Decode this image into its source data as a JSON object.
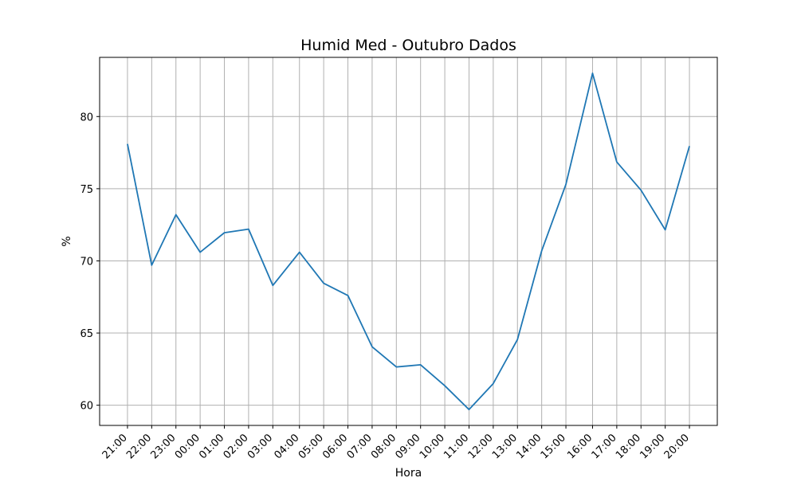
{
  "chart_data": {
    "type": "line",
    "title": "Humid Med - Outubro Dados",
    "xlabel": "Hora",
    "ylabel": "%",
    "tick_labels": [
      "21:00",
      "22:00",
      "23:00",
      "00:00",
      "01:00",
      "02:00",
      "03:00",
      "04:00",
      "05:00",
      "06:00",
      "07:00",
      "08:00",
      "09:00",
      "10:00",
      "11:00",
      "12:00",
      "13:00",
      "14:00",
      "15:00",
      "16:00",
      "17:00",
      "18:00",
      "19:00",
      "20:00"
    ],
    "x": [
      0.0,
      1.0,
      2.0,
      3.0,
      4.0,
      5.0,
      6.0,
      7.1,
      8.1,
      9.1,
      10.1,
      11.1,
      12.1,
      13.1,
      14.1,
      15.1,
      16.1,
      17.1,
      18.1,
      19.2,
      20.2,
      21.2,
      22.2,
      23.2
    ],
    "y": [
      78.1,
      69.7,
      73.2,
      70.6,
      71.95,
      72.2,
      68.3,
      70.6,
      68.45,
      67.6,
      64.05,
      62.65,
      62.8,
      61.35,
      59.7,
      61.5,
      64.55,
      70.7,
      75.3,
      83.0,
      76.85,
      74.9,
      72.15,
      77.95
    ],
    "xlim": [
      -1.15,
      24.35
    ],
    "ylim": [
      58.6,
      84.1
    ],
    "yticks": [
      60,
      65,
      70,
      75,
      80
    ],
    "grid": true,
    "color": "#1f77b4"
  }
}
